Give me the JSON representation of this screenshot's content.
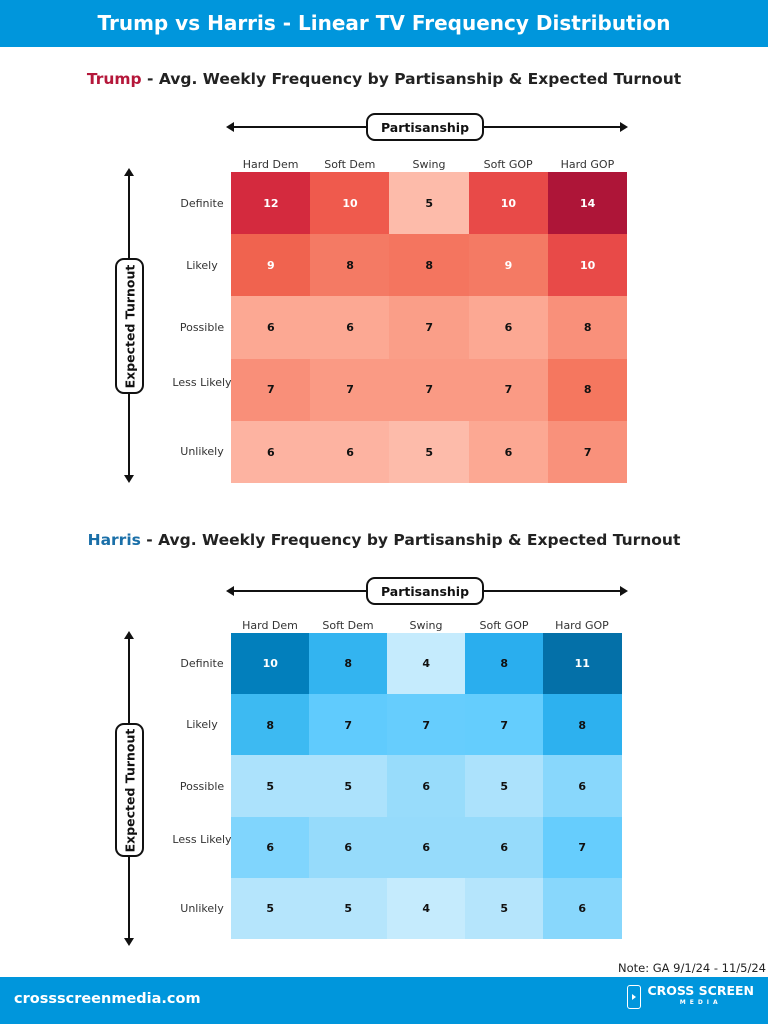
{
  "header": {
    "title": "Trump vs Harris - Linear TV Frequency Distribution"
  },
  "note": "Note: GA 9/1/24 - 11/5/24",
  "footer": {
    "site": "crossscreenmedia.com",
    "logo_main": "CROSS SCREEN",
    "logo_sub": "MEDIA"
  },
  "chart_data": [
    {
      "type": "heatmap",
      "title_name": "Trump",
      "title_rest": " - Avg. Weekly Frequency by Partisanship & Expected Turnout",
      "name_color": "#b5173a",
      "xlabel": "Partisanship",
      "ylabel": "Expected Turnout",
      "x_categories": [
        "Hard Dem",
        "Soft Dem",
        "Swing",
        "Soft GOP",
        "Hard GOP"
      ],
      "y_categories": [
        "Definite",
        "Likely",
        "Possible",
        "Less Likely",
        "Unlikely"
      ],
      "values": [
        [
          12,
          10,
          5,
          10,
          14
        ],
        [
          9,
          8,
          8,
          9,
          10
        ],
        [
          6,
          6,
          7,
          6,
          8
        ],
        [
          7,
          7,
          7,
          7,
          8
        ],
        [
          6,
          6,
          5,
          6,
          7
        ]
      ],
      "colors": [
        [
          "#d42a3e",
          "#ef5a4d",
          "#fdbbaa",
          "#e84a48",
          "#ae1538"
        ],
        [
          "#f0634f",
          "#f47a64",
          "#f4755f",
          "#f47a64",
          "#e84a48"
        ],
        [
          "#fca893",
          "#fca893",
          "#fa9e88",
          "#fca893",
          "#f9907a"
        ],
        [
          "#f98f79",
          "#fa9a84",
          "#fa9a84",
          "#fa9a84",
          "#f5775f"
        ],
        [
          "#fdb3a1",
          "#fdb3a1",
          "#fdbbaa",
          "#fca893",
          "#f9917b"
        ]
      ],
      "light_text_min": 9
    },
    {
      "type": "heatmap",
      "title_name": "Harris",
      "title_rest": " - Avg. Weekly Frequency by Partisanship & Expected Turnout",
      "name_color": "#1a6fa8",
      "xlabel": "Partisanship",
      "ylabel": "Expected Turnout",
      "x_categories": [
        "Hard Dem",
        "Soft Dem",
        "Swing",
        "Soft GOP",
        "Hard GOP"
      ],
      "y_categories": [
        "Definite",
        "Likely",
        "Possible",
        "Less Likely",
        "Unlikely"
      ],
      "values": [
        [
          10,
          8,
          4,
          8,
          11
        ],
        [
          8,
          7,
          7,
          7,
          8
        ],
        [
          5,
          5,
          6,
          5,
          6
        ],
        [
          6,
          6,
          6,
          6,
          7
        ],
        [
          5,
          5,
          4,
          5,
          6
        ]
      ],
      "colors": [
        [
          "#027fbc",
          "#33b4f0",
          "#c5ebfd",
          "#2aaeee",
          "#0470a8"
        ],
        [
          "#3dbaf2",
          "#60cbfd",
          "#66cdfd",
          "#64cdfd",
          "#2db1ef"
        ],
        [
          "#ace2fc",
          "#ace2fc",
          "#98dcfb",
          "#ace2fc",
          "#88d7fc"
        ],
        [
          "#80d5fd",
          "#96dbfb",
          "#96dbfb",
          "#96dbfb",
          "#66cdfd"
        ],
        [
          "#b5e5fc",
          "#b5e5fc",
          "#c5ebfd",
          "#b5e5fc",
          "#88d7fc"
        ]
      ],
      "light_text_min": 10
    }
  ]
}
